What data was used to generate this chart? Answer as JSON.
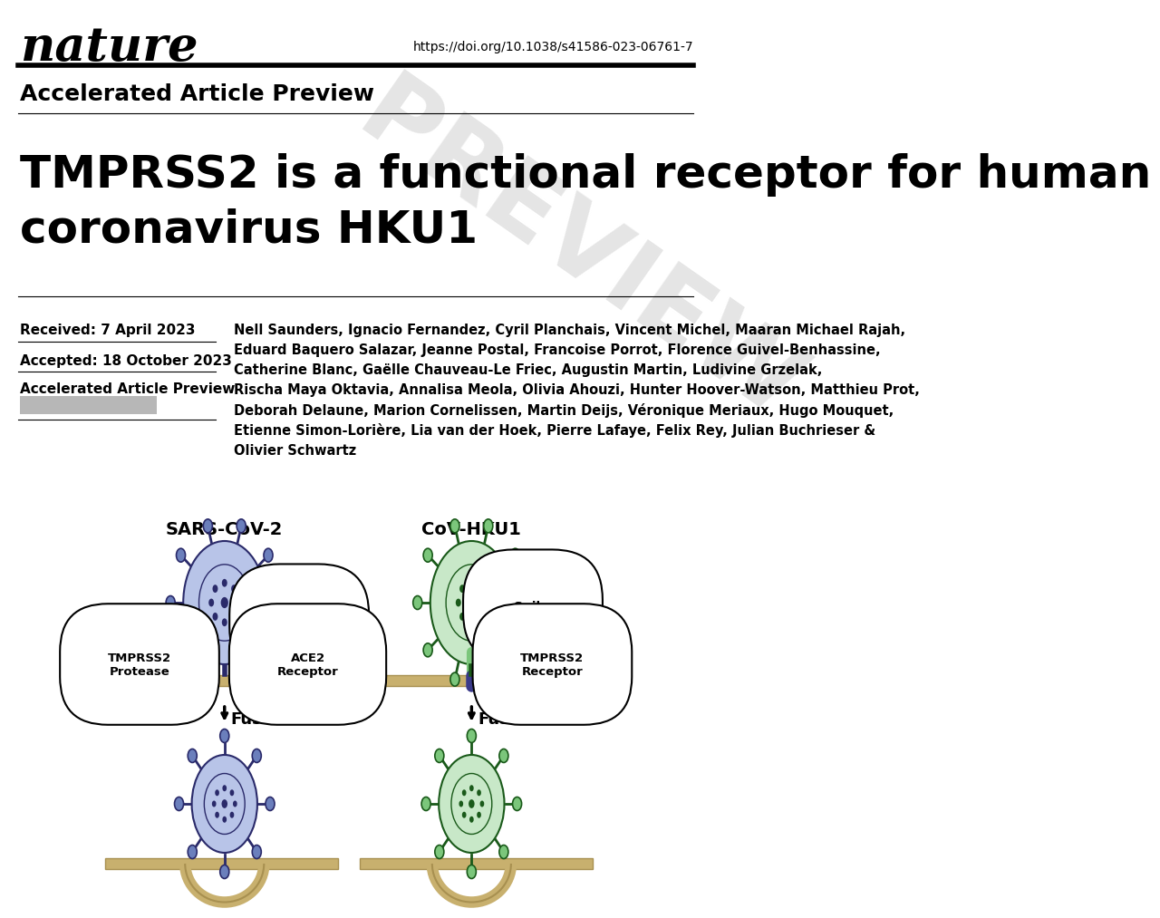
{
  "bg_color": "#ffffff",
  "nature_logo": "nature",
  "doi": "https://doi.org/10.1038/s41586-023-06761-7",
  "accelerated_label": "Accelerated Article Preview",
  "title_line1": "TMPRSS2 is a functional receptor for human",
  "title_line2": "coronavirus HKU1",
  "received": "Received: 7 April 2023",
  "accepted": "Accepted: 18 October 2023",
  "preview_label": "Accelerated Article Preview",
  "authors_line1": "Nell Saunders, Ignacio Fernandez, Cyril Planchais, Vincent Michel, Maaran Michael Rajah,",
  "authors_line2": "Eduard Baquero Salazar, Jeanne Postal, Francoise Porrot, Florence Guivel-Benhassine,",
  "authors_line3": "Catherine Blanc, Gaëlle Chauveau-Le Friec, Augustin Martin, Ludivine Grzelak,",
  "authors_line4": "Rischa Maya Oktavia, Annalisa Meola, Olivia Ahouzi, Hunter Hoover-Watson, Matthieu Prot,",
  "authors_line5": "Deborah Delaune, Marion Cornelissen, Martin Deijs, Véronique Meriaux, Hugo Mouquet,",
  "authors_line6": "Etienne Simon-Lorière, Lia van der Hoek, Pierre Lafaye, Felix Rey, Julian Buchrieser &",
  "authors_line7": "Olivier Schwartz",
  "sars_label": "SARS-CoV-2",
  "hku1_label": "CoV-HKU1",
  "spike_label": "Spike",
  "tmprss2_label": "TMPRSS2",
  "protease_label": "Protease",
  "ace2_label": "ACE2",
  "receptor_label": "Receptor",
  "fusion_label": "Fusion",
  "preview_watermark": "PREVIEW",
  "sars_body_color": "#b8c4e8",
  "sars_spike_color": "#6b7fbc",
  "sars_dark": "#2a2a6a",
  "hku1_body_color": "#c8e8c8",
  "hku1_spike_color": "#7bc67b",
  "hku1_dark": "#1a5a1a",
  "membrane_color": "#c8b06e",
  "membrane_dark": "#a89050",
  "receptor_color": "#3a3a8a"
}
